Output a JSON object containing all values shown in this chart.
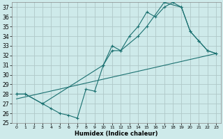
{
  "xlabel": "Humidex (Indice chaleur)",
  "background_color": "#ceeaea",
  "grid_color": "#b0c8c8",
  "line_color": "#1a7070",
  "xlim": [
    -0.5,
    23.5
  ],
  "ylim": [
    25,
    37.5
  ],
  "yticks": [
    25,
    26,
    27,
    28,
    29,
    30,
    31,
    32,
    33,
    34,
    35,
    36,
    37
  ],
  "xticks": [
    0,
    1,
    2,
    3,
    4,
    5,
    6,
    7,
    8,
    9,
    10,
    11,
    12,
    13,
    14,
    15,
    16,
    17,
    18,
    19,
    20,
    21,
    22,
    23
  ],
  "series1_x": [
    0,
    1,
    3,
    4,
    5,
    6,
    7,
    8,
    9,
    10,
    11,
    12,
    13,
    14,
    15,
    16,
    17,
    18,
    19,
    20,
    21,
    22,
    23
  ],
  "series1_y": [
    28.0,
    28.0,
    27.0,
    26.5,
    26.0,
    25.8,
    25.5,
    28.5,
    28.3,
    31.0,
    33.0,
    32.5,
    34.0,
    35.0,
    36.5,
    36.0,
    37.0,
    37.5,
    37.0,
    34.5,
    33.5,
    32.5,
    32.2
  ],
  "series2_x": [
    0,
    1,
    3,
    10,
    11,
    12,
    14,
    15,
    17,
    19,
    20,
    21,
    22,
    23
  ],
  "series2_y": [
    28.0,
    28.0,
    27.0,
    31.0,
    32.5,
    32.5,
    34.0,
    35.0,
    37.5,
    37.0,
    34.5,
    33.5,
    32.5,
    32.2
  ],
  "series3_x": [
    0,
    23
  ],
  "series3_y": [
    27.5,
    32.2
  ]
}
